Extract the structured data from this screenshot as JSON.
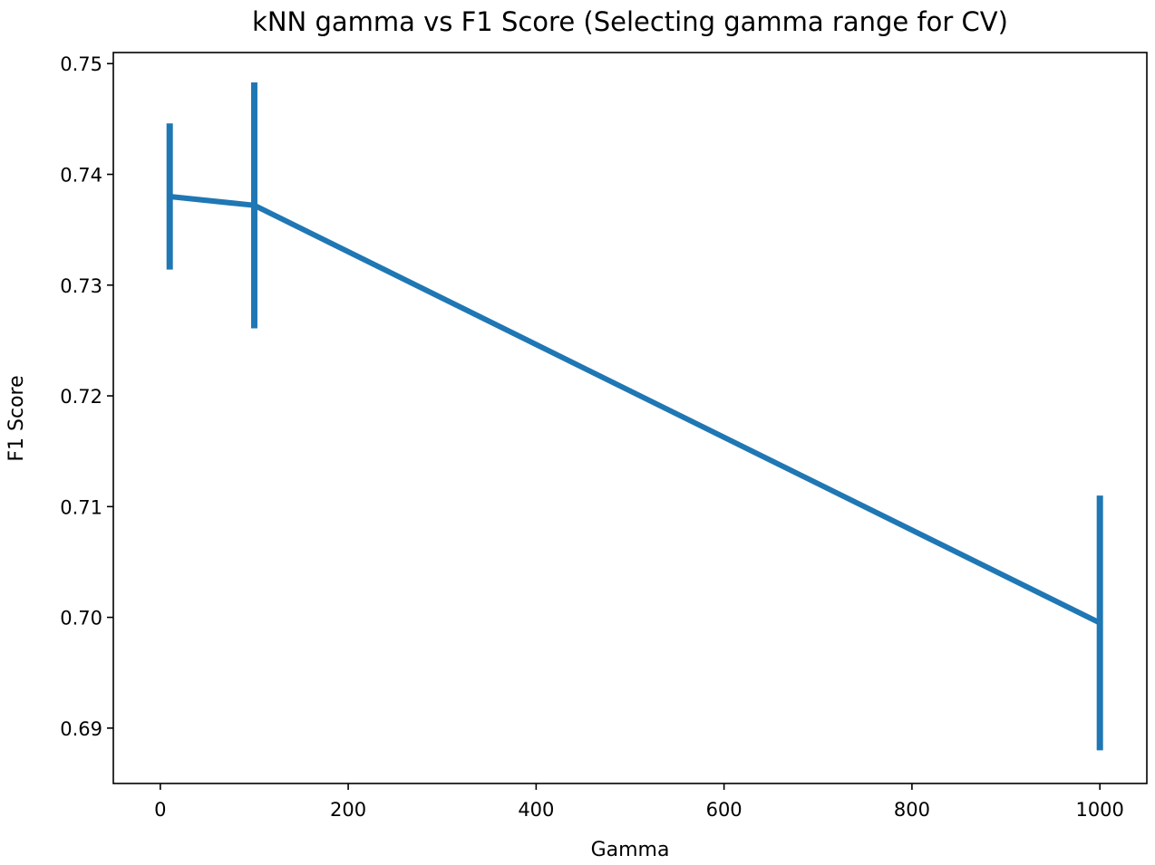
{
  "chart_data": {
    "type": "line",
    "title": "kNN gamma vs F1 Score (Selecting gamma range for CV)",
    "xlabel": "Gamma",
    "ylabel": "F1 Score",
    "xlim": [
      -50,
      1050
    ],
    "ylim": [
      0.685,
      0.751
    ],
    "xticks": [
      0,
      200,
      400,
      600,
      800,
      1000
    ],
    "xtick_labels": [
      "0",
      "200",
      "400",
      "600",
      "800",
      "1000"
    ],
    "yticks": [
      0.69,
      0.7,
      0.71,
      0.72,
      0.73,
      0.74,
      0.75
    ],
    "ytick_labels": [
      "0.69",
      "0.70",
      "0.71",
      "0.72",
      "0.73",
      "0.74",
      "0.75"
    ],
    "grid": false,
    "legend": "none",
    "series": [
      {
        "color": "#1f77b4",
        "x": [
          10,
          100,
          1000
        ],
        "y": [
          0.738,
          0.7372,
          0.6995
        ],
        "error": [
          0.0066,
          0.0111,
          0.0115
        ]
      }
    ]
  }
}
